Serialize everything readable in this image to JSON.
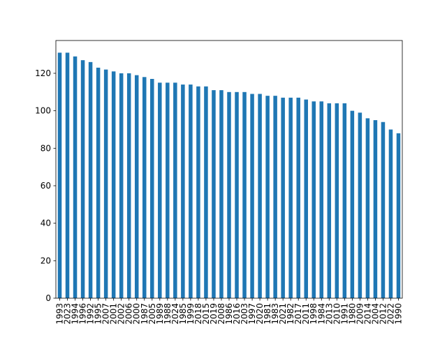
{
  "chart_data": {
    "type": "bar",
    "categories": [
      "1993",
      "2023",
      "1994",
      "1996",
      "1992",
      "1995",
      "2007",
      "2001",
      "2002",
      "2006",
      "2000",
      "1987",
      "2005",
      "1989",
      "1988",
      "2024",
      "1985",
      "1999",
      "2018",
      "2015",
      "2019",
      "2008",
      "1986",
      "2016",
      "2003",
      "1997",
      "2020",
      "1981",
      "1983",
      "2021",
      "1982",
      "2017",
      "2011",
      "1998",
      "1984",
      "2013",
      "2010",
      "1991",
      "1980",
      "2009",
      "2014",
      "2004",
      "2012",
      "2022",
      "1990"
    ],
    "values": [
      131,
      131,
      129,
      127,
      126,
      123,
      122,
      121,
      120,
      120,
      119,
      118,
      117,
      115,
      115,
      115,
      114,
      114,
      113,
      113,
      111,
      111,
      110,
      110,
      110,
      109,
      109,
      108,
      108,
      107,
      107,
      107,
      106,
      105,
      105,
      104,
      104,
      104,
      100,
      99,
      96,
      95,
      94,
      90,
      88
    ],
    "color": "#1f77b4",
    "ylim": [
      0,
      137.5
    ],
    "yticks": [
      0,
      20,
      40,
      60,
      80,
      100,
      120
    ]
  }
}
